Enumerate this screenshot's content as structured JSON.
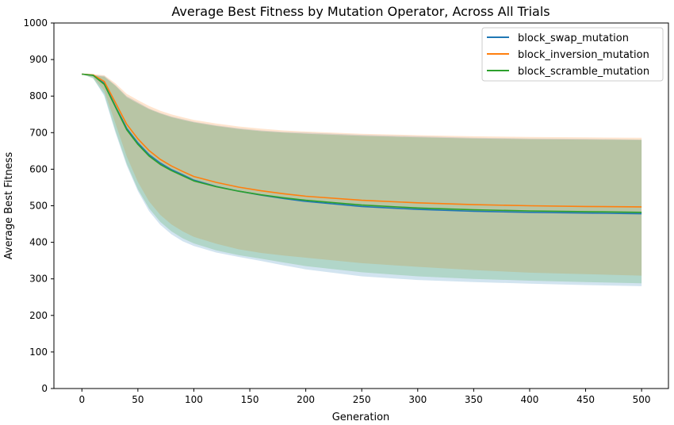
{
  "chart_data": {
    "type": "line",
    "title": "Average Best Fitness by Mutation Operator, Across All Trials",
    "xlabel": "Generation",
    "ylabel": "Average Best Fitness",
    "xlim": [
      -25,
      524
    ],
    "ylim": [
      0,
      1000
    ],
    "xticks": [
      0,
      50,
      100,
      150,
      200,
      250,
      300,
      350,
      400,
      450,
      500
    ],
    "yticks": [
      0,
      100,
      200,
      300,
      400,
      500,
      600,
      700,
      800,
      900,
      1000
    ],
    "grid": false,
    "legend_position": "top-right",
    "x": [
      0,
      10,
      20,
      30,
      40,
      50,
      60,
      70,
      80,
      90,
      100,
      120,
      140,
      160,
      180,
      200,
      250,
      300,
      350,
      400,
      450,
      500
    ],
    "series": [
      {
        "name": "block_swap_mutation",
        "color": "#1f77b4",
        "values": [
          860,
          857,
          835,
          772,
          712,
          672,
          640,
          617,
          599,
          585,
          570,
          553,
          540,
          529,
          520,
          512,
          498,
          490,
          485,
          482,
          480,
          478
        ],
        "upper": [
          860,
          858,
          855,
          830,
          800,
          783,
          766,
          754,
          744,
          737,
          730,
          720,
          712,
          706,
          702,
          700,
          694,
          690,
          686,
          684,
          683,
          681
        ],
        "lower": [
          860,
          850,
          800,
          700,
          610,
          540,
          485,
          448,
          422,
          403,
          390,
          372,
          360,
          349,
          337,
          326,
          307,
          297,
          291,
          287,
          283,
          280
        ]
      },
      {
        "name": "block_inversion_mutation",
        "color": "#ff7f0e",
        "values": [
          860,
          858,
          840,
          782,
          723,
          683,
          651,
          627,
          609,
          594,
          580,
          564,
          551,
          541,
          533,
          526,
          515,
          508,
          503,
          500,
          498,
          497
        ],
        "upper": [
          862,
          860,
          857,
          835,
          806,
          789,
          773,
          760,
          750,
          742,
          735,
          725,
          717,
          711,
          706,
          703,
          697,
          693,
          690,
          688,
          687,
          686
        ],
        "lower": [
          860,
          852,
          815,
          725,
          635,
          565,
          512,
          475,
          449,
          430,
          415,
          396,
          381,
          371,
          364,
          358,
          343,
          333,
          324,
          317,
          313,
          309
        ]
      },
      {
        "name": "block_scramble_mutation",
        "color": "#2ca02c",
        "values": [
          860,
          857,
          832,
          770,
          708,
          668,
          636,
          613,
          596,
          582,
          568,
          552,
          540,
          530,
          522,
          515,
          502,
          494,
          489,
          486,
          484,
          482
        ],
        "upper": [
          860,
          857,
          853,
          828,
          797,
          780,
          764,
          752,
          742,
          735,
          728,
          718,
          710,
          704,
          700,
          697,
          691,
          687,
          684,
          682,
          681,
          680
        ],
        "lower": [
          860,
          848,
          805,
          705,
          615,
          545,
          493,
          456,
          430,
          411,
          397,
          378,
          365,
          355,
          345,
          335,
          318,
          307,
          300,
          295,
          291,
          288
        ]
      }
    ]
  }
}
